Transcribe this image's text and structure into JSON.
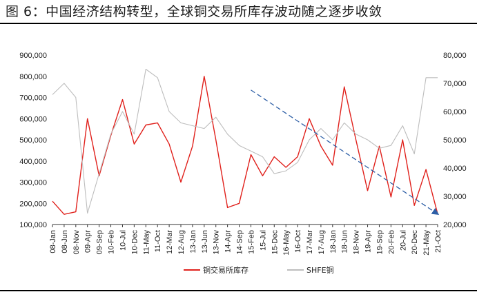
{
  "title": "图 6：中国经济结构转型，全球铜交易所库存波动随之逐步收敛",
  "chart_data": {
    "type": "line",
    "x_labels": [
      "08-Jan",
      "08-Jun",
      "08-Nov",
      "09-Apr",
      "09-Sep",
      "10-Feb",
      "10-Jul",
      "10-Dec",
      "11-May",
      "11-Oct",
      "12-Mar",
      "12-Aug",
      "13-Jan",
      "13-Jun",
      "13-Nov",
      "14-Apr",
      "14-Sep",
      "15-Feb",
      "15-Jul",
      "15-Dec",
      "16-May",
      "16-Oct",
      "17-Mar",
      "17-Aug",
      "18-Jan",
      "18-Jun",
      "18-Nov",
      "19-Apr",
      "19-Sep",
      "20-Feb",
      "20-Jul",
      "20-Dec",
      "21-May",
      "21-Oct"
    ],
    "y_left": {
      "min": 100000,
      "max": 900000,
      "ticks": [
        "100,000",
        "200,000",
        "300,000",
        "400,000",
        "500,000",
        "600,000",
        "700,000",
        "800,000",
        "900,000"
      ]
    },
    "y_right": {
      "min": 20000,
      "max": 80000,
      "ticks": [
        "20,000",
        "30,000",
        "40,000",
        "50,000",
        "60,000",
        "70,000",
        "80,000"
      ]
    },
    "series": [
      {
        "name": "铜交易所库存",
        "axis": "left",
        "color": "#e0201b",
        "values": [
          210000,
          148000,
          160000,
          600000,
          330000,
          520000,
          690000,
          480000,
          570000,
          580000,
          480000,
          300000,
          470000,
          800000,
          500000,
          180000,
          200000,
          430000,
          330000,
          420000,
          370000,
          420000,
          600000,
          470000,
          380000,
          750000,
          500000,
          260000,
          470000,
          230000,
          500000,
          190000,
          360000,
          150000
        ]
      },
      {
        "name": "SHFE铜",
        "axis": "right",
        "color": "#bdbdbd",
        "values": [
          66000,
          70000,
          65000,
          24000,
          38000,
          52000,
          60000,
          52000,
          75000,
          72000,
          60000,
          56000,
          55000,
          54000,
          58000,
          52000,
          48000,
          46000,
          44000,
          38000,
          39000,
          42000,
          50000,
          54000,
          50000,
          56000,
          52000,
          50000,
          47000,
          48000,
          55000,
          45000,
          72000,
          72000
        ]
      }
    ],
    "annotation": {
      "type": "trend-arrow",
      "from": {
        "x": "15-Feb",
        "y": 735000
      },
      "to": {
        "x": "21-Oct",
        "y": 150000
      },
      "color": "#2e5fa6",
      "style": "dashed"
    },
    "legend": {
      "position": "bottom"
    }
  }
}
